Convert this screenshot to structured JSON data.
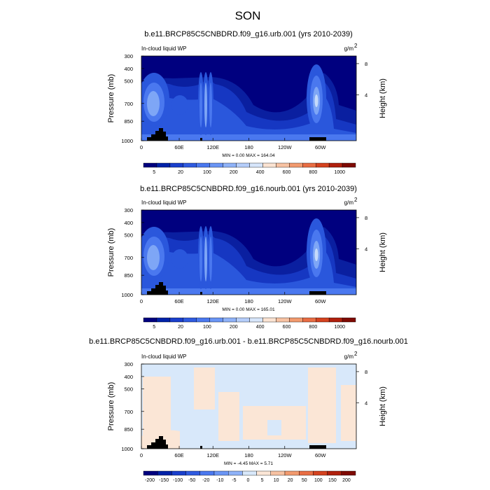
{
  "figure": {
    "title": "SON"
  },
  "chart_data": [
    {
      "type": "heatmap",
      "title": "b.e11.BRCP85C5CNBDRD.f09_g16.urb.001 (yrs 2010-2039)",
      "left_label": "In-cloud liquid WP",
      "units_main": "g/m",
      "units_exp": "2",
      "ylabel": "Pressure (mb)",
      "y2label": "Height (km)",
      "y_ticks": [
        "300",
        "400",
        "500",
        "700",
        "850",
        "1000"
      ],
      "y2_ticks": [
        "8",
        "4"
      ],
      "x_ticks": [
        "0",
        "60E",
        "120E",
        "180",
        "120W",
        "60W"
      ],
      "min_max": "MIN =   0.00  MAX = 164.04",
      "colorbar_labels": [
        "5",
        "20",
        "100",
        "200",
        "400",
        "600",
        "800",
        "1000"
      ],
      "colors": [
        "#00007f",
        "#0022a8",
        "#1a3fcc",
        "#2f5be0",
        "#4a78ef",
        "#6a95f5",
        "#8fb2f8",
        "#b5cdfa",
        "#d7e6fb",
        "#fbe3d2",
        "#f7c2a2",
        "#f29a6e",
        "#e86d43",
        "#d4421f",
        "#b0200d",
        "#7f0a03"
      ]
    },
    {
      "type": "heatmap",
      "title": "b.e11.BRCP85C5CNBDRD.f09_g16.nourb.001 (yrs 2010-2039)",
      "left_label": "In-cloud liquid WP",
      "units_main": "g/m",
      "units_exp": "2",
      "ylabel": "Pressure (mb)",
      "y2label": "Height (km)",
      "y_ticks": [
        "300",
        "400",
        "500",
        "700",
        "850",
        "1000"
      ],
      "y2_ticks": [
        "8",
        "4"
      ],
      "x_ticks": [
        "0",
        "60E",
        "120E",
        "180",
        "120W",
        "60W"
      ],
      "min_max": "MIN =   0.00  MAX = 165.01",
      "colorbar_labels": [
        "5",
        "20",
        "100",
        "200",
        "400",
        "600",
        "800",
        "1000"
      ],
      "colors": [
        "#00007f",
        "#0022a8",
        "#1a3fcc",
        "#2f5be0",
        "#4a78ef",
        "#6a95f5",
        "#8fb2f8",
        "#b5cdfa",
        "#d7e6fb",
        "#fbe3d2",
        "#f7c2a2",
        "#f29a6e",
        "#e86d43",
        "#d4421f",
        "#b0200d",
        "#7f0a03"
      ]
    },
    {
      "type": "heatmap",
      "title": "b.e11.BRCP85C5CNBDRD.f09_g16.urb.001 - b.e11.BRCP85C5CNBDRD.f09_g16.nourb.001",
      "left_label": "In-cloud liquid WP",
      "units_main": "g/m",
      "units_exp": "2",
      "ylabel": "Pressure (mb)",
      "y2label": "Height (km)",
      "y_ticks": [
        "300",
        "400",
        "500",
        "700",
        "850",
        "1000"
      ],
      "y2_ticks": [
        "8",
        "4"
      ],
      "x_ticks": [
        "0",
        "60E",
        "120E",
        "180",
        "120W",
        "60W"
      ],
      "min_max": "MIN =  -4.45  MAX =   5.71",
      "colorbar_labels": [
        "-200",
        "-150",
        "-100",
        "-50",
        "-20",
        "-10",
        "-5",
        "0",
        "5",
        "10",
        "20",
        "50",
        "100",
        "150",
        "200"
      ],
      "colors": [
        "#00007f",
        "#0022a8",
        "#1a3fcc",
        "#2f5be0",
        "#4a78ef",
        "#6a95f5",
        "#8fb2f8",
        "#d8e8fa",
        "#fbe6d6",
        "#f7c2a2",
        "#f29a6e",
        "#e86d43",
        "#d4421f",
        "#b0200d",
        "#7f0a03"
      ]
    }
  ]
}
